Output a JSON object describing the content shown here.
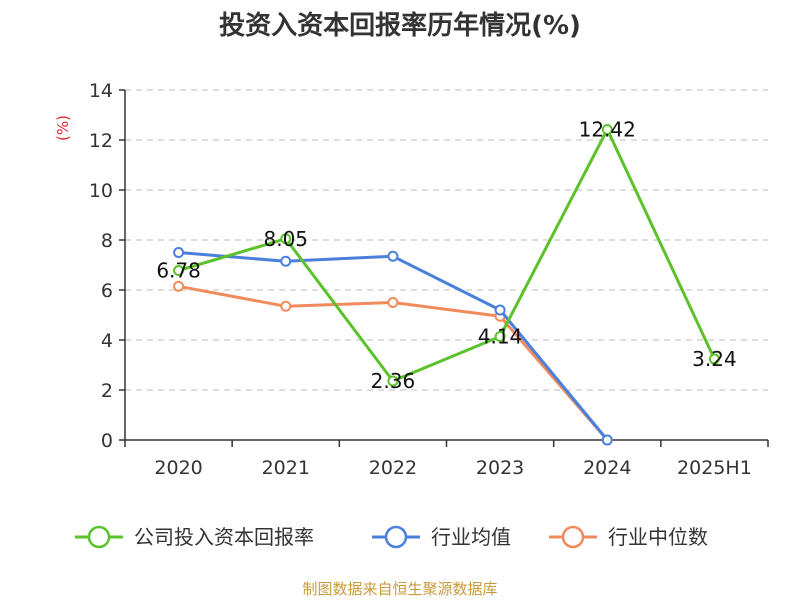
{
  "chart_data": {
    "type": "line",
    "title": "投资入资本回报率历年情况(%)",
    "ylabel": "(%)",
    "xlabel": "",
    "categories": [
      "2020",
      "2021",
      "2022",
      "2023",
      "2024",
      "2025H1"
    ],
    "ylim": [
      0,
      14
    ],
    "yticks": [
      0,
      2,
      4,
      6,
      8,
      10,
      12,
      14
    ],
    "grid": true,
    "legend_position": "bottom",
    "series": [
      {
        "name": "公司投入资本回报率",
        "color": "#5cc22b",
        "values": [
          6.78,
          8.05,
          2.36,
          4.14,
          12.42,
          3.24
        ],
        "labels": [
          "6.78",
          "8.05",
          "2.36",
          "4.14",
          "12.42",
          "3.24"
        ]
      },
      {
        "name": "行业均值",
        "color": "#4a7fdc",
        "values": [
          7.5,
          7.15,
          7.35,
          5.2,
          0.0,
          null
        ]
      },
      {
        "name": "行业中位数",
        "color": "#f28b5b",
        "values": [
          6.15,
          5.35,
          5.5,
          4.95,
          0.0,
          null
        ]
      }
    ],
    "source": "制图数据来自恒生聚源数据库"
  }
}
